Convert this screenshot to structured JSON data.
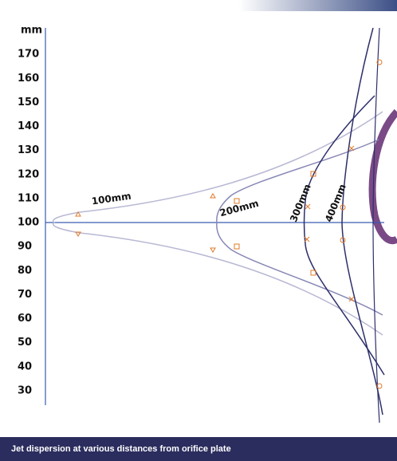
{
  "chart_data": {
    "type": "line",
    "y_label": "mm",
    "caption": "Jet dispersion at various distances from orifice plate",
    "curve_labels": [
      "100mm",
      "200mm",
      "300mm",
      "400mm"
    ],
    "ylim": [
      24,
      181
    ],
    "yticks": [
      30,
      40,
      50,
      60,
      70,
      80,
      90,
      100,
      110,
      120,
      130,
      140,
      150,
      160,
      170
    ]
  }
}
